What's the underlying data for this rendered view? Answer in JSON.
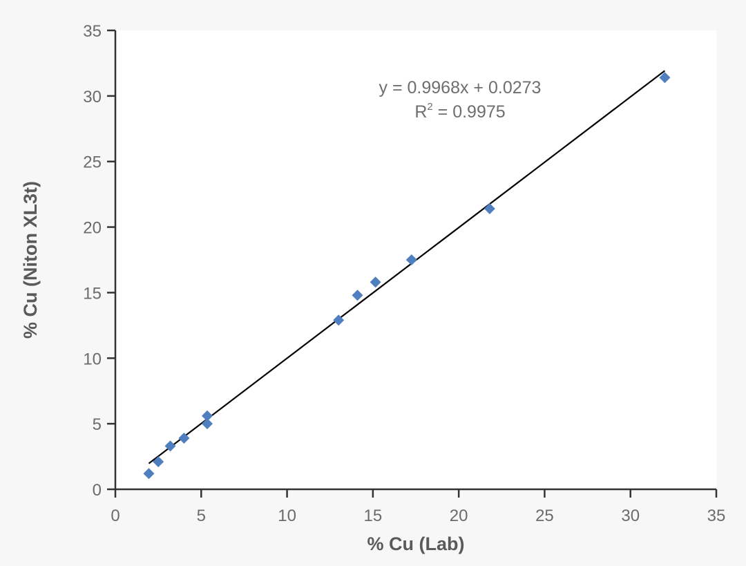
{
  "chart_data": {
    "type": "scatter",
    "xlabel": "% Cu (Lab)",
    "ylabel": "% Cu (Niton XL3t)",
    "xlim": [
      0,
      35
    ],
    "ylim": [
      0,
      35
    ],
    "x_ticks": [
      "0",
      "5",
      "10",
      "15",
      "20",
      "25",
      "30",
      "35"
    ],
    "y_ticks": [
      "0",
      "5",
      "10",
      "15",
      "20",
      "25",
      "30",
      "35"
    ],
    "grid": false,
    "legend": "none",
    "marker": "diamond",
    "marker_color": "#4f7fbf",
    "trendline_color": "#000000",
    "points": [
      {
        "x": 1.95,
        "y": 1.2
      },
      {
        "x": 2.5,
        "y": 2.1
      },
      {
        "x": 3.2,
        "y": 3.3
      },
      {
        "x": 4.0,
        "y": 3.9
      },
      {
        "x": 5.35,
        "y": 5.6
      },
      {
        "x": 5.35,
        "y": 5.0
      },
      {
        "x": 13.0,
        "y": 12.9
      },
      {
        "x": 14.1,
        "y": 14.8
      },
      {
        "x": 15.15,
        "y": 15.8
      },
      {
        "x": 17.25,
        "y": 17.5
      },
      {
        "x": 21.8,
        "y": 21.4
      },
      {
        "x": 32.0,
        "y": 31.4
      }
    ],
    "trendline": {
      "slope": 0.9968,
      "intercept": 0.0273,
      "x_range": [
        1.95,
        32.0
      ],
      "equation": "y = 0.9968x + 0.0273",
      "r2_prefix": "R",
      "r2_sup": "2",
      "r2_value": " = 0.9975"
    }
  }
}
